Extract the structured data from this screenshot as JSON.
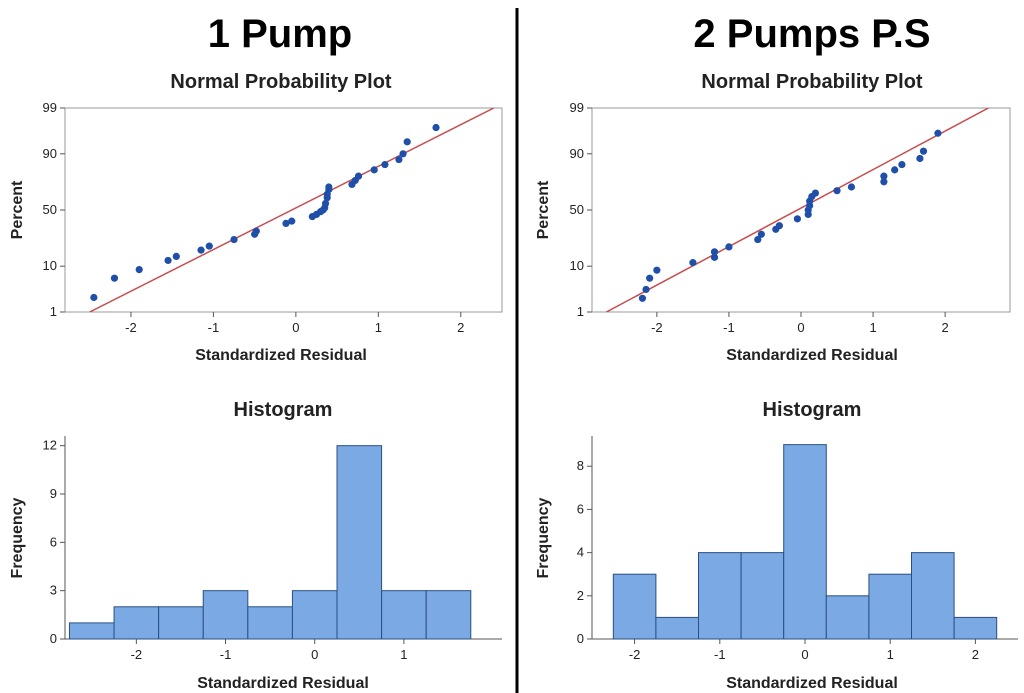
{
  "panels": [
    {
      "title": "1 Pump"
    },
    {
      "title": "2 Pumps P.S"
    }
  ],
  "colors": {
    "points": "#1f4fa8",
    "fit_line": "#c94c4c",
    "bar_fill": "#7aa9e3",
    "bar_edge": "#2a4f83",
    "divider": "#000000"
  },
  "chart_data": [
    {
      "panel": "1 Pump",
      "type": "scatter",
      "title": "Normal Probability Plot",
      "xlabel": "Standardized Residual",
      "ylabel": "Percent",
      "y_scale": "normal probability",
      "x_ticks": [
        -2,
        -1,
        0,
        1,
        2
      ],
      "y_ticks": [
        1,
        10,
        50,
        90,
        99
      ],
      "xlim": [
        -2.8,
        2.5
      ],
      "ylim": [
        1,
        99
      ],
      "fit_line": [
        [
          -2.5,
          1
        ],
        [
          2.4,
          99
        ]
      ],
      "x": [
        -2.45,
        -2.2,
        -1.9,
        -1.55,
        -1.45,
        -1.15,
        -1.05,
        -0.75,
        -0.5,
        -0.48,
        -0.12,
        -0.05,
        0.2,
        0.25,
        0.3,
        0.33,
        0.35,
        0.36,
        0.38,
        0.38,
        0.4,
        0.4,
        0.68,
        0.72,
        0.76,
        0.95,
        1.08,
        1.25,
        1.3,
        1.35,
        1.7
      ],
      "y": [
        2.3,
        6,
        8.7,
        12.5,
        14.5,
        18,
        20.5,
        25,
        29,
        31.5,
        38,
        40,
        44,
        46,
        48.5,
        50,
        52,
        56,
        61,
        64,
        68,
        70,
        72,
        75,
        78,
        82,
        85,
        87.5,
        90,
        94,
        97
      ]
    },
    {
      "panel": "1 Pump",
      "type": "bar",
      "title": "Histogram",
      "xlabel": "Standardized Residual",
      "ylabel": "Frequency",
      "x_ticks": [
        -2,
        -1,
        0,
        1
      ],
      "y_ticks": [
        0,
        3,
        6,
        9,
        12
      ],
      "xlim": [
        -2.8,
        2.1
      ],
      "ylim": [
        0,
        12.6
      ],
      "bin_edges": [
        -2.75,
        -2.25,
        -1.75,
        -1.25,
        -0.75,
        -0.25,
        0.25,
        0.75,
        1.25,
        1.75
      ],
      "values": [
        1,
        2,
        2,
        3,
        2,
        3,
        12,
        3,
        3
      ]
    },
    {
      "panel": "2 Pumps P.S",
      "type": "scatter",
      "title": "Normal Probability Plot",
      "xlabel": "Standardized Residual",
      "ylabel": "Percent",
      "y_scale": "normal probability",
      "x_ticks": [
        -2,
        -1,
        0,
        1,
        2
      ],
      "y_ticks": [
        1,
        10,
        50,
        90,
        99
      ],
      "xlim": [
        -2.9,
        2.9
      ],
      "ylim": [
        1,
        99
      ],
      "fit_line": [
        [
          -2.7,
          1
        ],
        [
          2.6,
          99
        ]
      ],
      "x": [
        -2.2,
        -2.15,
        -2.1,
        -2.0,
        -1.5,
        -1.2,
        -1.2,
        -1.0,
        -0.6,
        -0.55,
        -0.35,
        -0.3,
        -0.05,
        0.1,
        0.1,
        0.12,
        0.12,
        0.15,
        0.2,
        0.5,
        0.7,
        1.15,
        1.15,
        1.3,
        1.4,
        1.65,
        1.7,
        1.9
      ],
      "y": [
        2.2,
        3.5,
        6,
        8.5,
        11.5,
        14,
        17,
        20,
        25,
        29,
        33,
        36,
        42,
        46,
        50,
        54,
        58,
        62,
        65,
        67,
        70,
        74,
        78,
        82,
        85,
        88,
        91,
        96
      ]
    },
    {
      "panel": "2 Pumps P.S",
      "type": "bar",
      "title": "Histogram",
      "xlabel": "Standardized Residual",
      "ylabel": "Frequency",
      "x_ticks": [
        -2,
        -1,
        0,
        1,
        2
      ],
      "y_ticks": [
        0,
        2,
        4,
        6,
        8
      ],
      "xlim": [
        -2.5,
        2.5
      ],
      "ylim": [
        0,
        9.4
      ],
      "bin_edges": [
        -2.25,
        -1.75,
        -1.25,
        -0.75,
        -0.25,
        0.25,
        0.75,
        1.25,
        1.75,
        2.25
      ],
      "values": [
        3,
        1,
        4,
        4,
        9,
        2,
        3,
        4,
        1
      ]
    }
  ]
}
